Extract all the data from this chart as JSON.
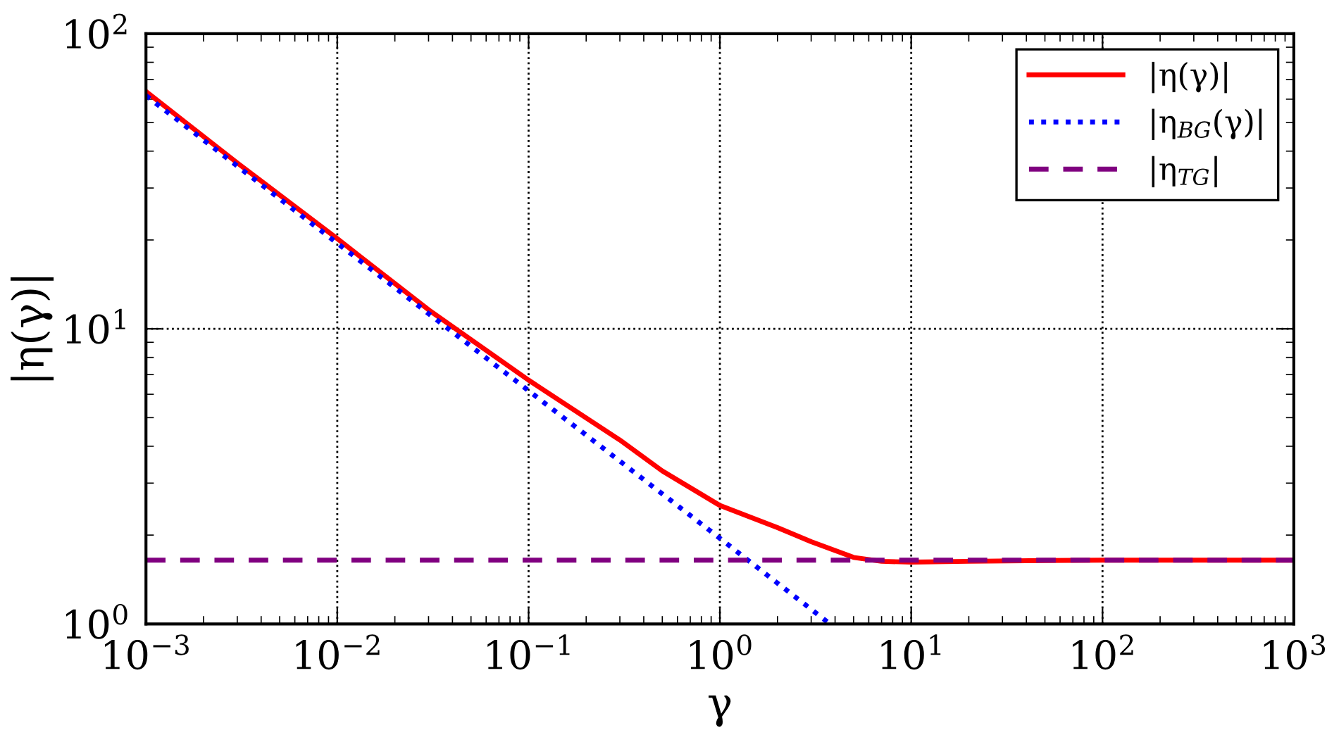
{
  "chart_data": {
    "type": "line",
    "xlabel": "γ",
    "ylabel": "|η(γ)|",
    "log": "xy",
    "grid": true,
    "legend": "top right",
    "xlim": [
      0.001,
      1000
    ],
    "ylim": [
      1,
      100
    ],
    "xticks": [
      {
        "value": 0.001,
        "label": "10$^{−3}$"
      },
      {
        "value": 0.01,
        "label": "10$^{−2}$"
      },
      {
        "value": 0.1,
        "label": "10$^{−1}$"
      },
      {
        "value": 1,
        "label": "10$^{0}$"
      },
      {
        "value": 10,
        "label": "10$^{1}$"
      },
      {
        "value": 100,
        "label": "10$^{2}$"
      },
      {
        "value": 1000,
        "label": "10$^{3}$"
      }
    ],
    "yticks": [
      {
        "value": 1,
        "label": "10$^{0}$"
      },
      {
        "value": 10,
        "label": "10$^{1}$"
      },
      {
        "value": 100,
        "label": "10$^{2}$"
      }
    ],
    "series": [
      {
        "name": "|η(γ)|",
        "color": "#ff0000",
        "line_style": "solid",
        "x": [
          0.001,
          0.003,
          0.01,
          0.03,
          0.1,
          0.3,
          0.5,
          1,
          2,
          3,
          5,
          7,
          10,
          20,
          50,
          100,
          1000
        ],
        "values": [
          63.7,
          36.5,
          20.2,
          11.6,
          6.7,
          4.2,
          3.3,
          2.52,
          2.12,
          1.9,
          1.68,
          1.63,
          1.62,
          1.63,
          1.64,
          1.645,
          1.645
        ]
      },
      {
        "name": "|η$_{BG}$(γ)|",
        "color": "#0000ff",
        "line_style": "dotted",
        "x": [
          0.001,
          0.01,
          0.1,
          1,
          3.76
        ],
        "values": [
          61.7,
          19.5,
          6.17,
          1.95,
          1.0
        ]
      },
      {
        "name": "|η$_{TG}$|",
        "color": "#800080",
        "line_style": "dashed",
        "x": [
          0.001,
          1000
        ],
        "values": [
          1.645,
          1.645
        ]
      }
    ]
  }
}
